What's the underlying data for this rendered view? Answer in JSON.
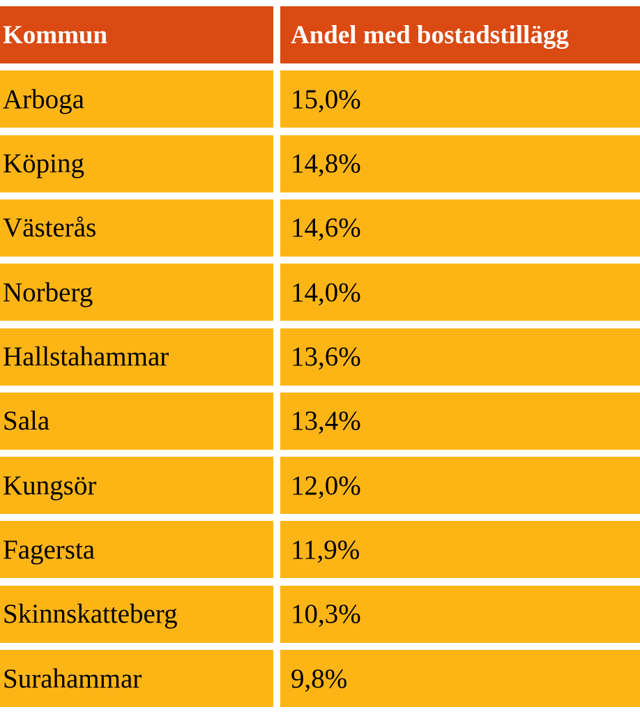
{
  "colors": {
    "header": "#DA4A12",
    "row": "#FDB516"
  },
  "table": {
    "headers": [
      "Kommun",
      "Andel med bostadstillägg"
    ],
    "rows": [
      [
        "Arboga",
        "15,0%"
      ],
      [
        "Köping",
        "14,8%"
      ],
      [
        "Västerås",
        "14,6%"
      ],
      [
        "Norberg",
        "14,0%"
      ],
      [
        "Hallstahammar",
        "13,6%"
      ],
      [
        "Sala",
        "13,4%"
      ],
      [
        "Kungsör",
        "12,0%"
      ],
      [
        "Fagersta",
        "11,9%"
      ],
      [
        "Skinnskatteberg",
        "10,3%"
      ],
      [
        "Surahammar",
        "9,8%"
      ]
    ]
  }
}
